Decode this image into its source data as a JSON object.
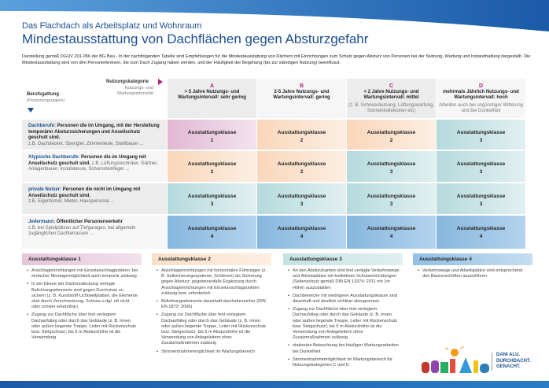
{
  "header": {
    "subtitle": "Das Flachdach als Arbeitsplatz und Wohnraum",
    "title": "Mindestausstattung von Dachflächen gegen Absturzgefahr",
    "description": "Darstellung gemäß DGUV 201-056 der BG Bau - In der nachfolgenden Tabelle sind Empfehlungen für die Mindestausstattung von Dächern mit Einrichtungen zum Schutz gegen Absturz von Personen bei der Nutzung, Wartung und Instandhaltung dargestellt. Die Mindestausstattung wird von den Personenkreisen, die zum Dach Zugang haben werden, und der Häufigkeit der Begehung (bis zur ständigen Nutzung) beeinflusst."
  },
  "table": {
    "corner": {
      "category": "Nutzungskategorie",
      "intensity": "Nutzungs- und Wartungsintensität",
      "group": "Berufsgattung",
      "group_sub": "(Personengruppen)"
    },
    "columns": [
      {
        "letter": "A",
        "title": "> 5 Jahre Nutzungs- und Wartungsintervall: sehr gering",
        "note": ""
      },
      {
        "letter": "B",
        "title": "2-5 Jahre Nutzungs- und Wartungsintervall: gering",
        "note": ""
      },
      {
        "letter": "C",
        "title": "< 2 Jahre Nutzungs- und Wartungsintervall: mittel",
        "note": "(z. B. Schneeräumung, Lüftungswartung, Sonnenkollektoren etc)"
      },
      {
        "letter": "D",
        "title": "mehrmals Jährlich Nutzungs- und Wartungsintervall: hoch",
        "note": "Arbeiten auch bei ungünstiger Witterung und bei Dunkelheit"
      }
    ],
    "cell_label": "Ausstattungsklasse",
    "rows": [
      {
        "key": "Dachberufe:",
        "desc": " Personen die im Umgang, mit der Herstellung temporärer Absturzsicherungen und Anseilschutz geschult sind.",
        "example": "z.B. Dachdecker, Spengler, Zimmerleute, Stahlbauer ...",
        "classes": [
          "1",
          "2",
          "2",
          "3"
        ]
      },
      {
        "key": "Atypische Dachberufe:",
        "desc": " Personen die im Umgang mit Anseilschutz geschult sind.",
        "example": " z.B. Lüftungstechniker, Gärtner, Anlagenbauer, Installateure, Schornsteinfeger ...",
        "classes": [
          "2",
          "2",
          "3",
          "3"
        ]
      },
      {
        "key": "private Nutzer:",
        "desc": " Personen die nicht im Umgang mit Anseilschutz geschult sind.",
        "example": "z.B. Eigentümer, Mieter, Hauspersonal ...",
        "classes": [
          "3",
          "3",
          "3",
          "3"
        ]
      },
      {
        "key": "Jedermann:",
        "desc": " Öffentlicher Personenverkehr",
        "example": "z.B. bei Spielplätzen auf Tiefgaragen, bei allgemein zugänglichen Dachterrassen ...",
        "classes": [
          "4",
          "4",
          "4",
          "4"
        ]
      }
    ]
  },
  "legend": [
    {
      "title": "Ausstattungsklasse 1",
      "items": [
        "Anschlageinrichtungen mit Einzelanschlagpunkten; bei einfacher Montagemöglichkeit auch temporär zulässig",
        "In der Ebene der Dacheindeckung verlegte Belichtungselemente sind gegen Durchsturz zu sichern (z. B. Kunststoff-Lichtwellplatten, die Elemente sind durch Verschmutzung, Schnee u.dgl. oft nicht oder schwer erkennbar)",
        "Zugang zur Dachfläche über fest verlegtem Dachaufstieg oder durch das Gebäude (z. B. innen oder außen liegende Treppe, Leiter mit Rückenschutz bzw. Steigschutz); bis 5 m Absturzhöhe ist die Verwendung"
      ]
    },
    {
      "title": "Ausstattungsklasse 2",
      "items": [
        "Anschlageinrichtungen mit horizontalen Führungen (z. B. Seilsicherungssysteme, Schienen) als Sicherung gegen Absturz; gegebenenfalls Ergänzung durch Anschlageinrichtungen mit Einzelanschlagpunkten zulässig bzw. erforderlich",
        "Belichtungselemente dauerhaft durchsturzsicher (DIN EN 1873: 2006)",
        "Zugang zur Dachfläche über fest verlegtem Dachaufstieg oder durch das Gebäude (z. B. innen oder außen liegende Treppe, Leiter mit Rückenschutz bzw. Steigschutz); bis 5 m Absturzhöhe ist die Verwendung von Anlegeleitern ohne Zusatzmaßnahmen zulässig",
        "Stromentnahmemöglichkeit im Wartungsbereich"
      ]
    },
    {
      "title": "Ausstattungsklasse 3",
      "items": [
        "An den Absturzkanten sind fest verlegte Verkehrswege und Arbeitsplätze mit kollektiven Schutzeinrichtungen (Seitenschutz gemäß DIN EN 13374: 2011 mit 1m Höhe) auszustatten",
        "Dachbereiche mit niedrigerer Ausstattungsklasse sind dauerhaft und deutlich sichtbar abzugrenzen",
        "Zugang zur Dachfläche über fest verlegtem Dachaufstieg oder durch das Gebäude (z. B. innen oder außen liegende Treppe, Leiter mit Rückenschutz bzw. Steigschutz); bis 5 m Absturzhöhe ist die Verwendung von Anlegeleitern ohne Zusatzmaßnahmen zulässig",
        "stationäre Beleuchtung bei häufigen Wartungsarbeiten bei Dunkelheit",
        "Stromentnahmemöglichkeit im Wartungsbereich für Nutzungskategorien C und D"
      ]
    },
    {
      "title": "Ausstattungsklasse 4",
      "items": [
        "Verkehrswege und Arbeitsplätze sind entsprechend den Bauvorschriften auszuführen"
      ]
    }
  ],
  "brand": {
    "logo": "dani alu",
    "line1": "DANI ALU.",
    "line2": "DURCHDACHT.",
    "line3": "GENACHT."
  },
  "colors": {
    "class1": "#e2b8d3",
    "class2": "#f9d7bb",
    "class3": "#b6dadc",
    "class4": "#86b7de",
    "accent": "#1d4e8f",
    "letter": "#b0247a"
  }
}
